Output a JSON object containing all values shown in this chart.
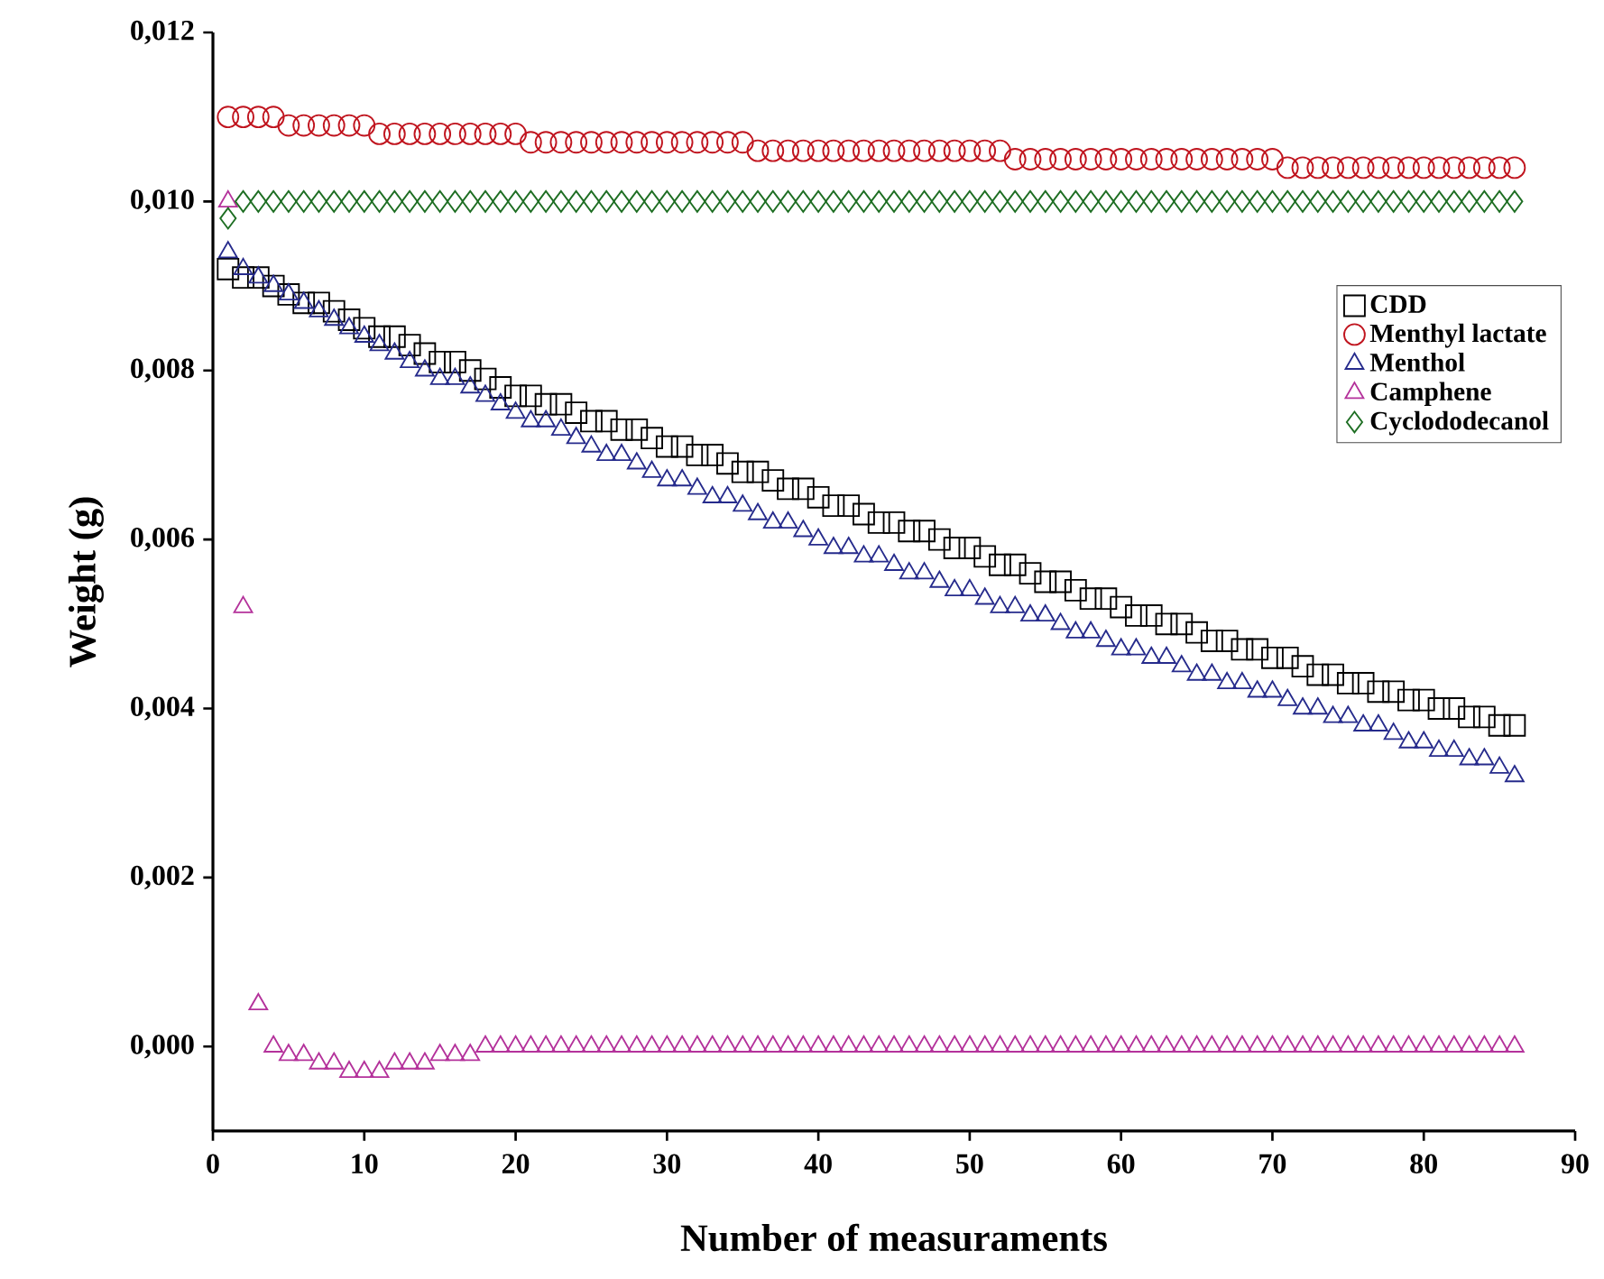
{
  "chart_data": {
    "type": "scatter",
    "xlabel": "Number of measuraments",
    "ylabel": "Weight (g)",
    "x": [
      1,
      2,
      3,
      4,
      5,
      6,
      7,
      8,
      9,
      10,
      11,
      12,
      13,
      14,
      15,
      16,
      17,
      18,
      19,
      20,
      21,
      22,
      23,
      24,
      25,
      26,
      27,
      28,
      29,
      30,
      31,
      32,
      33,
      34,
      35,
      36,
      37,
      38,
      39,
      40,
      41,
      42,
      43,
      44,
      45,
      46,
      47,
      48,
      49,
      50,
      51,
      52,
      53,
      54,
      55,
      56,
      57,
      58,
      59,
      60,
      61,
      62,
      63,
      64,
      65,
      66,
      67,
      68,
      69,
      70,
      71,
      72,
      73,
      74,
      75,
      76,
      77,
      78,
      79,
      80,
      81,
      82,
      83,
      84,
      85,
      86
    ],
    "xlim": [
      0,
      90
    ],
    "xticks": [
      0,
      10,
      20,
      30,
      40,
      50,
      60,
      70,
      80,
      90
    ],
    "ylim": [
      -0.001,
      0.012
    ],
    "yticks": [
      {
        "value": 0,
        "label": "0,000"
      },
      {
        "value": 0.002,
        "label": "0,002"
      },
      {
        "value": 0.004,
        "label": "0,004"
      },
      {
        "value": 0.006,
        "label": "0,006"
      },
      {
        "value": 0.008,
        "label": "0,008"
      },
      {
        "value": 0.01,
        "label": "0,010"
      },
      {
        "value": 0.012,
        "label": "0,012"
      }
    ],
    "legend": "top right",
    "series": [
      {
        "name": "CDD",
        "color": "#000000",
        "marker": "square",
        "values": [
          0.0092,
          0.0091,
          0.0091,
          0.009,
          0.0089,
          0.0088,
          0.0088,
          0.0087,
          0.0086,
          0.0085,
          0.0084,
          0.0084,
          0.0083,
          0.0082,
          0.0081,
          0.0081,
          0.008,
          0.0079,
          0.0078,
          0.0077,
          0.0077,
          0.0076,
          0.0076,
          0.0075,
          0.0074,
          0.0074,
          0.0073,
          0.0073,
          0.0072,
          0.0071,
          0.0071,
          0.007,
          0.007,
          0.0069,
          0.0068,
          0.0068,
          0.0067,
          0.0066,
          0.0066,
          0.0065,
          0.0064,
          0.0064,
          0.0063,
          0.0062,
          0.0062,
          0.0061,
          0.0061,
          0.006,
          0.0059,
          0.0059,
          0.0058,
          0.0057,
          0.0057,
          0.0056,
          0.0055,
          0.0055,
          0.0054,
          0.0053,
          0.0053,
          0.0052,
          0.0051,
          0.0051,
          0.005,
          0.005,
          0.0049,
          0.0048,
          0.0048,
          0.0047,
          0.0047,
          0.0046,
          0.0046,
          0.0045,
          0.0044,
          0.0044,
          0.0043,
          0.0043,
          0.0042,
          0.0042,
          0.0041,
          0.0041,
          0.004,
          0.004,
          0.0039,
          0.0039,
          0.0038,
          0.0038
        ]
      },
      {
        "name": "Menthyl lactate",
        "color": "#c0141e",
        "marker": "circle",
        "values": [
          0.011,
          0.011,
          0.011,
          0.011,
          0.0109,
          0.0109,
          0.0109,
          0.0109,
          0.0109,
          0.0109,
          0.0108,
          0.0108,
          0.0108,
          0.0108,
          0.0108,
          0.0108,
          0.0108,
          0.0108,
          0.0108,
          0.0108,
          0.0107,
          0.0107,
          0.0107,
          0.0107,
          0.0107,
          0.0107,
          0.0107,
          0.0107,
          0.0107,
          0.0107,
          0.0107,
          0.0107,
          0.0107,
          0.0107,
          0.0107,
          0.0106,
          0.0106,
          0.0106,
          0.0106,
          0.0106,
          0.0106,
          0.0106,
          0.0106,
          0.0106,
          0.0106,
          0.0106,
          0.0106,
          0.0106,
          0.0106,
          0.0106,
          0.0106,
          0.0106,
          0.0105,
          0.0105,
          0.0105,
          0.0105,
          0.0105,
          0.0105,
          0.0105,
          0.0105,
          0.0105,
          0.0105,
          0.0105,
          0.0105,
          0.0105,
          0.0105,
          0.0105,
          0.0105,
          0.0105,
          0.0105,
          0.0104,
          0.0104,
          0.0104,
          0.0104,
          0.0104,
          0.0104,
          0.0104,
          0.0104,
          0.0104,
          0.0104,
          0.0104,
          0.0104,
          0.0104,
          0.0104,
          0.0104,
          0.0104
        ]
      },
      {
        "name": "Menthol",
        "color": "#262b8c",
        "marker": "triangle",
        "values": [
          0.0094,
          0.0092,
          0.0091,
          0.009,
          0.0089,
          0.0088,
          0.0087,
          0.0086,
          0.0085,
          0.0084,
          0.0083,
          0.0082,
          0.0081,
          0.008,
          0.0079,
          0.0079,
          0.0078,
          0.0077,
          0.0076,
          0.0075,
          0.0074,
          0.0074,
          0.0073,
          0.0072,
          0.0071,
          0.007,
          0.007,
          0.0069,
          0.0068,
          0.0067,
          0.0067,
          0.0066,
          0.0065,
          0.0065,
          0.0064,
          0.0063,
          0.0062,
          0.0062,
          0.0061,
          0.006,
          0.0059,
          0.0059,
          0.0058,
          0.0058,
          0.0057,
          0.0056,
          0.0056,
          0.0055,
          0.0054,
          0.0054,
          0.0053,
          0.0052,
          0.0052,
          0.0051,
          0.0051,
          0.005,
          0.0049,
          0.0049,
          0.0048,
          0.0047,
          0.0047,
          0.0046,
          0.0046,
          0.0045,
          0.0044,
          0.0044,
          0.0043,
          0.0043,
          0.0042,
          0.0042,
          0.0041,
          0.004,
          0.004,
          0.0039,
          0.0039,
          0.0038,
          0.0038,
          0.0037,
          0.0036,
          0.0036,
          0.0035,
          0.0035,
          0.0034,
          0.0034,
          0.0033,
          0.0032
        ]
      },
      {
        "name": "Camphene",
        "color": "#b4329b",
        "marker": "triangle",
        "values": [
          0.01,
          0.0052,
          0.0005,
          0.0,
          -0.0001,
          -0.0001,
          -0.0002,
          -0.0002,
          -0.0003,
          -0.0003,
          -0.0003,
          -0.0002,
          -0.0002,
          -0.0002,
          -0.0001,
          -0.0001,
          -0.0001,
          0.0,
          0.0,
          0.0,
          0.0,
          0.0,
          0.0,
          0.0,
          0.0,
          0.0,
          0.0,
          0.0,
          0.0,
          0.0,
          0.0,
          0.0,
          0.0,
          0.0,
          0.0,
          0.0,
          0.0,
          0.0,
          0.0,
          0.0,
          0.0,
          0.0,
          0.0,
          0.0,
          0.0,
          0.0,
          0.0,
          0.0,
          0.0,
          0.0,
          0.0,
          0.0,
          0.0,
          0.0,
          0.0,
          0.0,
          0.0,
          0.0,
          0.0,
          0.0,
          0.0,
          0.0,
          0.0,
          0.0,
          0.0,
          0.0,
          0.0,
          0.0,
          0.0,
          0.0,
          0.0,
          0.0,
          0.0,
          0.0,
          0.0,
          0.0,
          0.0,
          0.0,
          0.0,
          0.0,
          0.0,
          0.0,
          0.0,
          0.0,
          0.0,
          0.0
        ]
      },
      {
        "name": "Cyclododecanol",
        "color": "#1e6e23",
        "marker": "diamond",
        "values": [
          0.0098,
          0.01,
          0.01,
          0.01,
          0.01,
          0.01,
          0.01,
          0.01,
          0.01,
          0.01,
          0.01,
          0.01,
          0.01,
          0.01,
          0.01,
          0.01,
          0.01,
          0.01,
          0.01,
          0.01,
          0.01,
          0.01,
          0.01,
          0.01,
          0.01,
          0.01,
          0.01,
          0.01,
          0.01,
          0.01,
          0.01,
          0.01,
          0.01,
          0.01,
          0.01,
          0.01,
          0.01,
          0.01,
          0.01,
          0.01,
          0.01,
          0.01,
          0.01,
          0.01,
          0.01,
          0.01,
          0.01,
          0.01,
          0.01,
          0.01,
          0.01,
          0.01,
          0.01,
          0.01,
          0.01,
          0.01,
          0.01,
          0.01,
          0.01,
          0.01,
          0.01,
          0.01,
          0.01,
          0.01,
          0.01,
          0.01,
          0.01,
          0.01,
          0.01,
          0.01,
          0.01,
          0.01,
          0.01,
          0.01,
          0.01,
          0.01,
          0.01,
          0.01,
          0.01,
          0.01,
          0.01,
          0.01,
          0.01,
          0.01,
          0.01,
          0.01
        ]
      }
    ]
  }
}
